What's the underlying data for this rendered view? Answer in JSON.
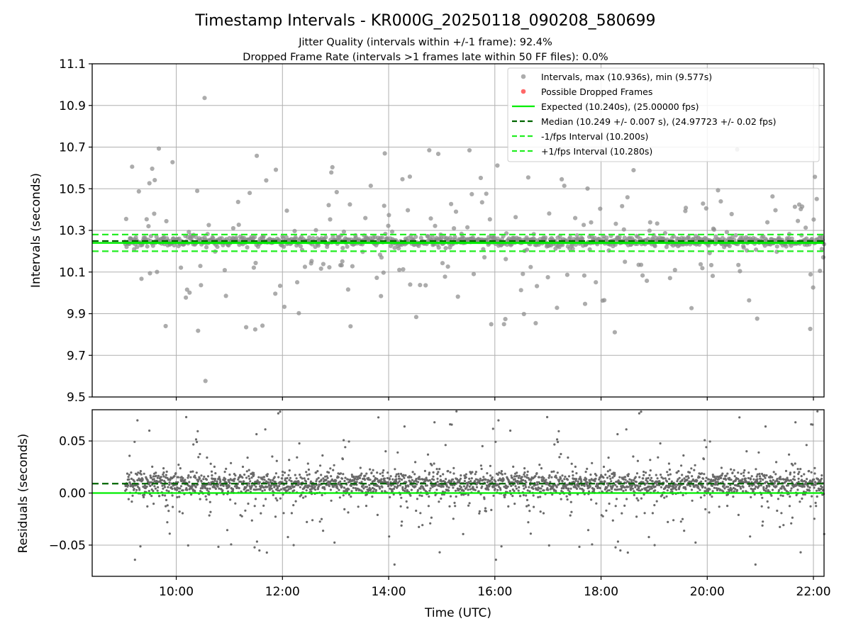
{
  "title": "Timestamp Intervals - KR000G_20250118_090208_580699",
  "subtitle_1": "Jitter Quality (intervals within +/-1 frame): 92.4%",
  "subtitle_2": "Dropped Frame Rate (intervals >1 frames late within 50 FF files): 0.0%",
  "colors": {
    "points": "#8c8c8c",
    "residual_points": "#696969",
    "dropped": "#ff4d4d",
    "expected": "#00ee00",
    "median": "#006400",
    "interval": "#22ee22",
    "grid": "#b0b0b0"
  },
  "chart_data": [
    {
      "type": "scatter",
      "ylabel": "Intervals (seconds)",
      "xlabel": "",
      "ylim": [
        9.5,
        11.1
      ],
      "xlim": [
        "08:25",
        "22:12"
      ],
      "grid": true,
      "legend_position": "top-right",
      "y_ticks": [
        "9.5",
        "9.7",
        "9.9",
        "10.1",
        "10.3",
        "10.5",
        "10.7",
        "10.9",
        "11.1"
      ],
      "x_ticks": [
        "10:00",
        "12:00",
        "14:00",
        "16:00",
        "18:00",
        "20:00",
        "22:00"
      ],
      "data_x_range": [
        "09:02",
        "22:12"
      ],
      "series": [
        {
          "name": "Intervals, max (10.936s), min (9.577s)",
          "kind": "scatter",
          "max": 10.936,
          "min": 9.577,
          "core_center": 10.248,
          "core_spread": 0.025
        },
        {
          "name": "Possible Dropped Frames",
          "kind": "scatter",
          "count": 0
        },
        {
          "name": "Expected (10.240s), (25.00000 fps)",
          "kind": "hline",
          "value": 10.24
        },
        {
          "name": "Median (10.249 +/- 0.007 s), (24.97723 +/- 0.02 fps)",
          "kind": "hline",
          "value": 10.249
        },
        {
          "name": "-1/fps Interval (10.200s)",
          "kind": "hline",
          "value": 10.2
        },
        {
          "name": "+1/fps Interval (10.280s)",
          "kind": "hline",
          "value": 10.28
        }
      ]
    },
    {
      "type": "scatter",
      "ylabel": "Residuals (seconds)",
      "xlabel": "Time (UTC)",
      "ylim": [
        -0.08,
        0.08
      ],
      "grid": true,
      "y_ticks": [
        "0.05",
        "0.00",
        "−0.05"
      ],
      "x_ticks": [
        "10:00",
        "12:00",
        "14:00",
        "16:00",
        "18:00",
        "20:00",
        "22:00"
      ],
      "series": [
        {
          "kind": "scatter",
          "center": 0.009
        },
        {
          "kind": "hline",
          "value": 0.0,
          "role": "expected"
        },
        {
          "kind": "hline",
          "value": 0.009,
          "role": "median"
        }
      ]
    }
  ]
}
